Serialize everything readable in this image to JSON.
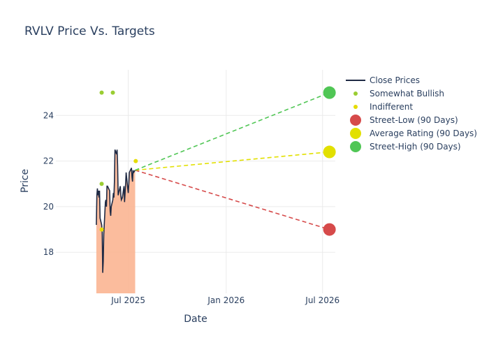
{
  "chart_data": {
    "type": "line",
    "title": "RVLV Price Vs. Targets",
    "xlabel": "Date",
    "ylabel": "Price",
    "x_range": [
      "2025-02-15",
      "2026-07-25"
    ],
    "y_range": [
      16.2,
      26.0
    ],
    "x_ticks": [
      {
        "date": "2025-07-01",
        "label": "Jul 2025"
      },
      {
        "date": "2026-01-01",
        "label": "Jan 2026"
      },
      {
        "date": "2026-07-01",
        "label": "Jul 2026"
      }
    ],
    "y_ticks": [
      18,
      20,
      22,
      24
    ],
    "grid": true,
    "legend_position": "right",
    "close_prices": {
      "name": "Close Prices",
      "color": "#1f2a44",
      "fill_color": "#fbb592",
      "points": [
        [
          "2025-05-02",
          19.2
        ],
        [
          "2025-05-03",
          20.5
        ],
        [
          "2025-05-04",
          20.8
        ],
        [
          "2025-05-05",
          20.5
        ],
        [
          "2025-05-06",
          20.7
        ],
        [
          "2025-05-07",
          20.4
        ],
        [
          "2025-05-08",
          20.7
        ],
        [
          "2025-05-09",
          19.5
        ],
        [
          "2025-05-12",
          19.2
        ],
        [
          "2025-05-13",
          18.9
        ],
        [
          "2025-05-14",
          17.1
        ],
        [
          "2025-05-15",
          17.6
        ],
        [
          "2025-05-16",
          18.8
        ],
        [
          "2025-05-19",
          20.2
        ],
        [
          "2025-05-20",
          20.3
        ],
        [
          "2025-05-21",
          20.0
        ],
        [
          "2025-05-22",
          20.9
        ],
        [
          "2025-05-23",
          20.9
        ],
        [
          "2025-05-27",
          20.7
        ],
        [
          "2025-05-28",
          19.8
        ],
        [
          "2025-05-29",
          19.6
        ],
        [
          "2025-05-30",
          20.0
        ],
        [
          "2025-06-02",
          20.3
        ],
        [
          "2025-06-03",
          20.6
        ],
        [
          "2025-06-04",
          20.4
        ],
        [
          "2025-06-05",
          21.1
        ],
        [
          "2025-06-06",
          22.5
        ],
        [
          "2025-06-09",
          22.3
        ],
        [
          "2025-06-10",
          22.5
        ],
        [
          "2025-06-11",
          21.8
        ],
        [
          "2025-06-12",
          20.5
        ],
        [
          "2025-06-13",
          20.6
        ],
        [
          "2025-06-16",
          20.9
        ],
        [
          "2025-06-17",
          20.5
        ],
        [
          "2025-06-18",
          20.3
        ],
        [
          "2025-06-20",
          20.4
        ],
        [
          "2025-06-23",
          20.9
        ],
        [
          "2025-06-24",
          20.2
        ],
        [
          "2025-06-25",
          20.6
        ],
        [
          "2025-06-26",
          21.0
        ],
        [
          "2025-06-27",
          21.5
        ],
        [
          "2025-06-30",
          20.8
        ],
        [
          "2025-07-01",
          20.6
        ],
        [
          "2025-07-02",
          21.0
        ],
        [
          "2025-07-03",
          21.5
        ],
        [
          "2025-07-07",
          21.7
        ],
        [
          "2025-07-08",
          21.3
        ],
        [
          "2025-07-09",
          21.1
        ],
        [
          "2025-07-10",
          21.6
        ],
        [
          "2025-07-11",
          21.5
        ],
        [
          "2025-07-14",
          21.6
        ]
      ]
    },
    "somewhat_bullish": {
      "name": "Somewhat Bullish",
      "color": "#9acd32",
      "points": [
        [
          "2025-05-12",
          25.0
        ],
        [
          "2025-06-02",
          25.0
        ],
        [
          "2025-05-12",
          21.0
        ]
      ]
    },
    "indifferent": {
      "name": "Indifferent",
      "color": "#e5dc00",
      "points": [
        [
          "2025-05-12",
          19.0
        ],
        [
          "2025-07-15",
          22.0
        ]
      ]
    },
    "targets": [
      {
        "name": "Street-Low (90 Days)",
        "color": "#d64a4a",
        "start": [
          "2025-07-14",
          21.6
        ],
        "end": [
          "2026-07-14",
          19.0
        ]
      },
      {
        "name": "Average Rating (90 Days)",
        "color": "#e2e000",
        "start": [
          "2025-07-14",
          21.6
        ],
        "end": [
          "2026-07-14",
          22.4
        ]
      },
      {
        "name": "Street-High (90 Days)",
        "color": "#50c655",
        "start": [
          "2025-07-14",
          21.6
        ],
        "end": [
          "2026-07-14",
          25.0
        ]
      }
    ]
  }
}
